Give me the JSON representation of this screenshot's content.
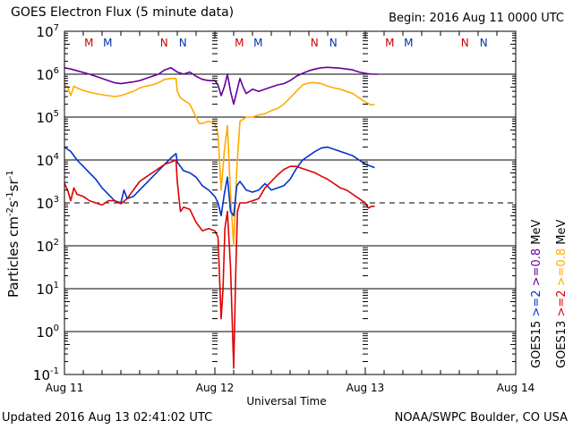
{
  "header": {
    "title": "GOES Electron Flux (5 minute data)",
    "begin": "Begin: 2016 Aug 11 0000 UTC"
  },
  "footer": {
    "updated": "Updated 2016 Aug 13 02:41:02 UTC",
    "credit": "NOAA/SWPC Boulder, CO USA"
  },
  "chart_data": {
    "type": "line",
    "title": "GOES Electron Flux (5 minute data)",
    "xlabel": "Universal Time",
    "ylabel": "Particles cm-2 s-1 sr-1",
    "yscale": "log",
    "ylim": [
      0.1,
      10000000
    ],
    "xlim_hours": [
      0,
      72
    ],
    "x_unit": "hours since 2016 Aug 11 0000 UTC",
    "x_ticks": [
      {
        "hour": 0,
        "label": "Aug 11"
      },
      {
        "hour": 24,
        "label": "Aug 12"
      },
      {
        "hour": 48,
        "label": "Aug 13"
      },
      {
        "hour": 72,
        "label": "Aug 14"
      }
    ],
    "y_ticks": [
      {
        "exp": 7,
        "label": "10",
        "sup": "7"
      },
      {
        "exp": 6,
        "label": "10",
        "sup": "6"
      },
      {
        "exp": 5,
        "label": "10",
        "sup": "5"
      },
      {
        "exp": 4,
        "label": "10",
        "sup": "4"
      },
      {
        "exp": 3,
        "label": "10",
        "sup": "3"
      },
      {
        "exp": 2,
        "label": "10",
        "sup": "2"
      },
      {
        "exp": 1,
        "label": "10",
        "sup": "1"
      },
      {
        "exp": 0,
        "label": "10",
        "sup": "0"
      },
      {
        "exp": -1,
        "label": "10",
        "sup": "-1"
      }
    ],
    "threshold": {
      "value": 1000,
      "style": "dashed"
    },
    "grid": "horizontal lines at each decade",
    "day_markers": [
      {
        "hour": 3.9,
        "label": "M",
        "color": "#cc0000"
      },
      {
        "hour": 6.9,
        "label": "M",
        "color": "#0033aa"
      },
      {
        "hour": 15.9,
        "label": "N",
        "color": "#cc0000"
      },
      {
        "hour": 18.9,
        "label": "N",
        "color": "#0033aa"
      },
      {
        "hour": 27.9,
        "label": "M",
        "color": "#cc0000"
      },
      {
        "hour": 30.9,
        "label": "M",
        "color": "#0033aa"
      },
      {
        "hour": 39.9,
        "label": "N",
        "color": "#cc0000"
      },
      {
        "hour": 42.9,
        "label": "N",
        "color": "#0033aa"
      },
      {
        "hour": 51.9,
        "label": "M",
        "color": "#cc0000"
      },
      {
        "hour": 54.9,
        "label": "M",
        "color": "#0033aa"
      },
      {
        "hour": 63.9,
        "label": "N",
        "color": "#cc0000"
      },
      {
        "hour": 66.9,
        "label": "N",
        "color": "#0033aa"
      }
    ],
    "legend": {
      "placement": "right (vertical text)",
      "entries": [
        {
          "text": "GOES15",
          "color": "#000000"
        },
        {
          "text": ">=2",
          "color": "#0033cc"
        },
        {
          "text": ">=0.8",
          "color": "#660099"
        },
        {
          "text": "MeV",
          "color": "#000000"
        },
        {
          "text": "GOES13",
          "color": "#000000"
        },
        {
          "text": ">=2",
          "color": "#dd0000"
        },
        {
          "text": ">=0.8",
          "color": "#ffaa00"
        },
        {
          "text": "MeV",
          "color": "#000000"
        }
      ]
    },
    "series": [
      {
        "name": "GOES15 >=0.8 MeV",
        "color": "#660099",
        "log10_points": [
          [
            0,
            6.15
          ],
          [
            1,
            6.12
          ],
          [
            2,
            6.08
          ],
          [
            3,
            6.04
          ],
          [
            4,
            6.0
          ],
          [
            5,
            5.95
          ],
          [
            6,
            5.9
          ],
          [
            7,
            5.85
          ],
          [
            8,
            5.8
          ],
          [
            9,
            5.78
          ],
          [
            10,
            5.8
          ],
          [
            11,
            5.82
          ],
          [
            12,
            5.85
          ],
          [
            13,
            5.9
          ],
          [
            14,
            5.95
          ],
          [
            15,
            6.0
          ],
          [
            16,
            6.1
          ],
          [
            17,
            6.15
          ],
          [
            17.5,
            6.1
          ],
          [
            18,
            6.05
          ],
          [
            19,
            6.0
          ],
          [
            20,
            6.05
          ],
          [
            21,
            5.95
          ],
          [
            22,
            5.88
          ],
          [
            23,
            5.85
          ],
          [
            24,
            5.85
          ],
          [
            24.5,
            5.75
          ],
          [
            25,
            5.5
          ],
          [
            25.5,
            5.7
          ],
          [
            26,
            6.0
          ],
          [
            26.5,
            5.6
          ],
          [
            27,
            5.3
          ],
          [
            27.5,
            5.6
          ],
          [
            28,
            5.9
          ],
          [
            28.5,
            5.7
          ],
          [
            29,
            5.55
          ],
          [
            30,
            5.65
          ],
          [
            31,
            5.6
          ],
          [
            32,
            5.65
          ],
          [
            33,
            5.7
          ],
          [
            34,
            5.75
          ],
          [
            35,
            5.78
          ],
          [
            36,
            5.85
          ],
          [
            37,
            5.95
          ],
          [
            38,
            6.02
          ],
          [
            39,
            6.08
          ],
          [
            40,
            6.12
          ],
          [
            41,
            6.15
          ],
          [
            42,
            6.16
          ],
          [
            43,
            6.15
          ],
          [
            44,
            6.14
          ],
          [
            45,
            6.12
          ],
          [
            46,
            6.1
          ],
          [
            47,
            6.05
          ],
          [
            48,
            6.02
          ],
          [
            49,
            6.0
          ],
          [
            50,
            6.0
          ]
        ]
      },
      {
        "name": "GOES13 >=0.8 MeV",
        "color": "#ffaa00",
        "log10_points": [
          [
            0,
            5.75
          ],
          [
            0.5,
            5.7
          ],
          [
            1,
            5.5
          ],
          [
            1.5,
            5.72
          ],
          [
            2,
            5.68
          ],
          [
            3,
            5.62
          ],
          [
            4,
            5.58
          ],
          [
            5,
            5.55
          ],
          [
            6,
            5.52
          ],
          [
            7,
            5.5
          ],
          [
            8,
            5.48
          ],
          [
            9,
            5.5
          ],
          [
            10,
            5.55
          ],
          [
            11,
            5.6
          ],
          [
            12,
            5.68
          ],
          [
            13,
            5.72
          ],
          [
            14,
            5.75
          ],
          [
            15,
            5.8
          ],
          [
            16,
            5.88
          ],
          [
            17,
            5.9
          ],
          [
            17.8,
            5.9
          ],
          [
            18,
            5.6
          ],
          [
            18.5,
            5.45
          ],
          [
            19,
            5.4
          ],
          [
            20,
            5.3
          ],
          [
            21,
            5.0
          ],
          [
            21.5,
            4.85
          ],
          [
            22,
            4.85
          ],
          [
            23,
            4.9
          ],
          [
            24,
            4.85
          ],
          [
            24.5,
            4.6
          ],
          [
            25,
            3.3
          ],
          [
            25.5,
            4.2
          ],
          [
            26,
            4.8
          ],
          [
            26.5,
            3.2
          ],
          [
            27,
            2.0
          ],
          [
            27.5,
            3.8
          ],
          [
            28,
            4.9
          ],
          [
            29,
            5.0
          ],
          [
            30,
            5.0
          ],
          [
            31,
            5.05
          ],
          [
            32,
            5.08
          ],
          [
            33,
            5.15
          ],
          [
            34,
            5.2
          ],
          [
            35,
            5.3
          ],
          [
            36,
            5.45
          ],
          [
            37,
            5.6
          ],
          [
            38,
            5.75
          ],
          [
            39,
            5.8
          ],
          [
            40,
            5.8
          ],
          [
            41,
            5.78
          ],
          [
            42,
            5.72
          ],
          [
            43,
            5.68
          ],
          [
            44,
            5.65
          ],
          [
            45,
            5.6
          ],
          [
            46,
            5.55
          ],
          [
            47,
            5.45
          ],
          [
            48,
            5.35
          ],
          [
            49,
            5.28
          ],
          [
            49.5,
            5.3
          ]
        ]
      },
      {
        "name": "GOES15 >=2 MeV",
        "color": "#0033cc",
        "log10_points": [
          [
            0,
            4.3
          ],
          [
            1,
            4.2
          ],
          [
            2,
            4.0
          ],
          [
            3,
            3.85
          ],
          [
            4,
            3.7
          ],
          [
            5,
            3.55
          ],
          [
            6,
            3.35
          ],
          [
            7,
            3.2
          ],
          [
            8,
            3.05
          ],
          [
            9,
            3.0
          ],
          [
            9.5,
            3.3
          ],
          [
            10,
            3.1
          ],
          [
            11,
            3.15
          ],
          [
            12,
            3.3
          ],
          [
            13,
            3.45
          ],
          [
            14,
            3.6
          ],
          [
            15,
            3.75
          ],
          [
            16,
            3.9
          ],
          [
            17,
            4.05
          ],
          [
            17.8,
            4.15
          ],
          [
            18,
            3.95
          ],
          [
            19,
            3.75
          ],
          [
            20,
            3.7
          ],
          [
            21,
            3.6
          ],
          [
            22,
            3.4
          ],
          [
            23,
            3.3
          ],
          [
            24,
            3.15
          ],
          [
            24.5,
            3.0
          ],
          [
            25,
            2.7
          ],
          [
            25.5,
            3.2
          ],
          [
            26,
            3.6
          ],
          [
            26.5,
            2.8
          ],
          [
            27,
            2.7
          ],
          [
            27.5,
            3.4
          ],
          [
            28,
            3.5
          ],
          [
            29,
            3.3
          ],
          [
            30,
            3.25
          ],
          [
            31,
            3.3
          ],
          [
            32,
            3.45
          ],
          [
            33,
            3.3
          ],
          [
            34,
            3.35
          ],
          [
            35,
            3.4
          ],
          [
            36,
            3.55
          ],
          [
            37,
            3.8
          ],
          [
            38,
            4.0
          ],
          [
            39,
            4.1
          ],
          [
            40,
            4.2
          ],
          [
            41,
            4.28
          ],
          [
            42,
            4.3
          ],
          [
            43,
            4.25
          ],
          [
            44,
            4.2
          ],
          [
            45,
            4.15
          ],
          [
            46,
            4.1
          ],
          [
            47,
            4.0
          ],
          [
            48,
            3.9
          ],
          [
            49,
            3.85
          ],
          [
            49.5,
            3.82
          ]
        ]
      },
      {
        "name": "GOES13 >=2 MeV",
        "color": "#dd0000",
        "log10_points": [
          [
            0,
            3.45
          ],
          [
            0.5,
            3.3
          ],
          [
            1,
            3.05
          ],
          [
            1.5,
            3.35
          ],
          [
            2,
            3.2
          ],
          [
            3,
            3.15
          ],
          [
            4,
            3.05
          ],
          [
            5,
            3.0
          ],
          [
            6,
            2.95
          ],
          [
            7,
            3.05
          ],
          [
            8,
            3.05
          ],
          [
            9,
            2.98
          ],
          [
            10,
            3.1
          ],
          [
            11,
            3.3
          ],
          [
            12,
            3.5
          ],
          [
            13,
            3.6
          ],
          [
            14,
            3.7
          ],
          [
            15,
            3.8
          ],
          [
            16,
            3.9
          ],
          [
            17,
            3.95
          ],
          [
            17.8,
            4.0
          ],
          [
            18,
            3.5
          ],
          [
            18.5,
            2.8
          ],
          [
            19,
            2.9
          ],
          [
            20,
            2.85
          ],
          [
            21,
            2.55
          ],
          [
            22,
            2.35
          ],
          [
            23,
            2.4
          ],
          [
            24,
            2.35
          ],
          [
            24.5,
            2.2
          ],
          [
            25,
            0.3
          ],
          [
            25.3,
            1.0
          ],
          [
            25.6,
            2.4
          ],
          [
            26,
            2.8
          ],
          [
            26.5,
            1.5
          ],
          [
            27,
            -0.85
          ],
          [
            27.3,
            1.2
          ],
          [
            27.6,
            2.8
          ],
          [
            28,
            3.0
          ],
          [
            29,
            3.0
          ],
          [
            30,
            3.05
          ],
          [
            31,
            3.1
          ],
          [
            32,
            3.35
          ],
          [
            33,
            3.5
          ],
          [
            34,
            3.65
          ],
          [
            35,
            3.78
          ],
          [
            36,
            3.85
          ],
          [
            37,
            3.85
          ],
          [
            38,
            3.8
          ],
          [
            39,
            3.75
          ],
          [
            40,
            3.7
          ],
          [
            41,
            3.62
          ],
          [
            42,
            3.55
          ],
          [
            43,
            3.45
          ],
          [
            44,
            3.35
          ],
          [
            45,
            3.3
          ],
          [
            46,
            3.2
          ],
          [
            47,
            3.1
          ],
          [
            48,
            3.0
          ],
          [
            48.5,
            2.88
          ],
          [
            49,
            2.92
          ],
          [
            49.5,
            2.92
          ]
        ]
      }
    ]
  }
}
